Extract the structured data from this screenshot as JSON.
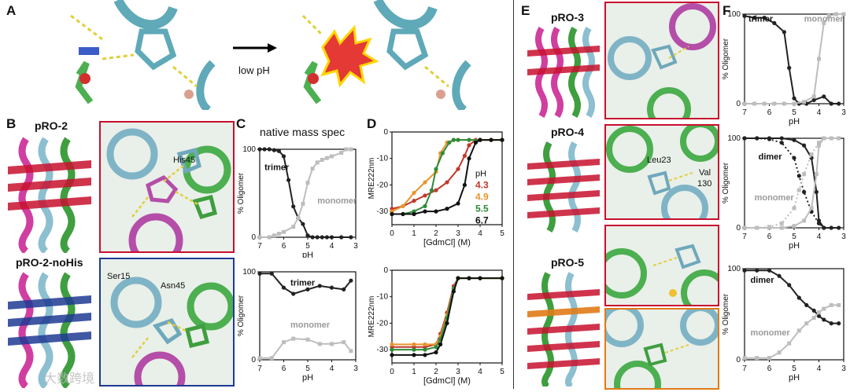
{
  "panels": {
    "A": {
      "letter": "A",
      "arrow_label": "low pH"
    },
    "B": {
      "letter": "B",
      "top_title": "pRO-2",
      "bottom_title": "pRO-2-noHis",
      "labels": {
        "his45": "His45",
        "ser15": "Ser15",
        "asn45": "Asn45"
      }
    },
    "C": {
      "letter": "C",
      "title": "native mass spec"
    },
    "D": {
      "letter": "D"
    },
    "E": {
      "letter": "E",
      "titles": [
        "pRO-3",
        "pRO-4",
        "pRO-5"
      ],
      "labels": {
        "leu23": "Leu23",
        "val130_a": "Val",
        "val130_b": "130"
      }
    },
    "F": {
      "letter": "F"
    }
  },
  "watermark": "大数跨境",
  "colors": {
    "red": "#c8102e",
    "blue": "#1f3a93",
    "orange": "#e07b18",
    "dark": "#222222",
    "grey": "#bdbdbd",
    "ph43": "#c0392b",
    "ph49": "#e8952c",
    "ph55": "#2e8b3a",
    "ph67": "#111111"
  },
  "chart_data": [
    {
      "id": "C1",
      "type": "line",
      "title": "native mass spec",
      "xlabel": "pH",
      "ylabel": "% Oligomer",
      "xlim": [
        7,
        3
      ],
      "ylim": [
        0,
        100
      ],
      "xticks": [
        7,
        6,
        5,
        4,
        3
      ],
      "yticks": [
        0,
        100
      ],
      "series": [
        {
          "name": "trimer",
          "color": "#222222",
          "x": [
            7,
            6.8,
            6.6,
            6.4,
            6.2,
            6.0,
            5.8,
            5.6,
            5.4,
            5.2,
            5.0,
            4.8,
            4.6,
            4.4,
            4.2,
            4.0,
            3.6,
            3.2
          ],
          "y": [
            100,
            100,
            100,
            99,
            98,
            92,
            65,
            35,
            22,
            15,
            2,
            0,
            0,
            0,
            0,
            0,
            0,
            0
          ]
        },
        {
          "name": "monomer",
          "color": "#bdbdbd",
          "x": [
            7,
            6.6,
            6.4,
            6.2,
            6.0,
            5.6,
            5.4,
            5.2,
            5.0,
            4.8,
            4.6,
            4.4,
            4.2,
            4.0,
            3.6,
            3.4,
            3.2
          ],
          "y": [
            0,
            0,
            2,
            4,
            6,
            12,
            22,
            38,
            62,
            78,
            85,
            88,
            90,
            92,
            96,
            100,
            100
          ]
        }
      ]
    },
    {
      "id": "C2",
      "type": "line",
      "xlabel": "pH",
      "ylabel": "% Oligomer",
      "xlim": [
        7,
        3
      ],
      "ylim": [
        0,
        100
      ],
      "xticks": [
        7,
        6,
        5,
        4,
        3
      ],
      "yticks": [
        0,
        100
      ],
      "series": [
        {
          "name": "trimer",
          "color": "#222222",
          "x": [
            7,
            6.5,
            6.0,
            5.6,
            5.0,
            4.5,
            4.0,
            3.5,
            3.2
          ],
          "y": [
            98,
            98,
            82,
            75,
            80,
            84,
            82,
            80,
            90
          ]
        },
        {
          "name": "monomer",
          "color": "#bdbdbd",
          "x": [
            7,
            6.5,
            6.0,
            5.6,
            5.0,
            4.5,
            4.0,
            3.5,
            3.2
          ],
          "y": [
            2,
            2,
            20,
            24,
            23,
            18,
            18,
            20,
            10
          ]
        }
      ]
    },
    {
      "id": "D1",
      "type": "line",
      "xlabel": "[GdmCl] (M)",
      "ylabel": "MRE222nm",
      "xlim": [
        0,
        5
      ],
      "ylim": [
        -35,
        0
      ],
      "xticks": [
        0,
        1,
        2,
        3,
        4,
        5
      ],
      "yticks": [
        0,
        -10,
        -20,
        -30
      ],
      "legend_title": "pH",
      "series": [
        {
          "name": "4.3",
          "color": "#c0392b",
          "x": [
            0,
            0.5,
            1.0,
            1.5,
            2.0,
            2.5,
            3.0,
            3.3,
            3.5,
            3.8,
            4.0,
            4.5,
            5.0
          ],
          "y": [
            -29,
            -28,
            -26,
            -24,
            -22,
            -19,
            -14,
            -9,
            -5,
            -3,
            -3,
            -3,
            -3
          ]
        },
        {
          "name": "4.9",
          "color": "#e8952c",
          "x": [
            0,
            0.5,
            1.0,
            1.5,
            2.0,
            2.2,
            2.5,
            2.8,
            3.0,
            3.5,
            4.0,
            4.5,
            5.0
          ],
          "y": [
            -30,
            -28,
            -23,
            -19,
            -15,
            -8,
            -4,
            -3,
            -3,
            -3,
            -3,
            -3,
            -3
          ]
        },
        {
          "name": "5.5",
          "color": "#2e8b3a",
          "x": [
            0,
            0.5,
            1.0,
            1.5,
            1.8,
            2.0,
            2.3,
            2.6,
            2.8,
            3.0,
            3.5,
            4.0,
            5.0
          ],
          "y": [
            -31,
            -31,
            -30,
            -28,
            -22,
            -14,
            -8,
            -4,
            -3,
            -3,
            -3,
            -3,
            -3
          ]
        },
        {
          "name": "6.7",
          "color": "#111111",
          "x": [
            0,
            0.5,
            1.0,
            1.5,
            2.0,
            2.5,
            3.0,
            3.3,
            3.5,
            3.8,
            4.0,
            4.5,
            5.0
          ],
          "y": [
            -31,
            -31,
            -31,
            -30,
            -30,
            -29,
            -27,
            -20,
            -10,
            -4,
            -3,
            -3,
            -3
          ]
        }
      ]
    },
    {
      "id": "D2",
      "type": "line",
      "xlabel": "[GdmCl] (M)",
      "ylabel": "MRE222nm",
      "xlim": [
        0,
        5
      ],
      "ylim": [
        -35,
        0
      ],
      "xticks": [
        0,
        1,
        2,
        3,
        4,
        5
      ],
      "yticks": [
        0,
        -10,
        -20,
        -30
      ],
      "series": [
        {
          "name": "4.3",
          "color": "#c0392b",
          "x": [
            0,
            1.0,
            1.5,
            2.0,
            2.2,
            2.5,
            2.8,
            3.0,
            3.5,
            4.0,
            5.0
          ],
          "y": [
            -29,
            -29,
            -29,
            -28,
            -24,
            -16,
            -6,
            -3,
            -3,
            -3,
            -3
          ]
        },
        {
          "name": "4.9",
          "color": "#e8952c",
          "x": [
            0,
            1.0,
            1.5,
            2.0,
            2.2,
            2.5,
            2.8,
            3.0,
            3.5,
            4.0,
            5.0
          ],
          "y": [
            -28,
            -28,
            -28,
            -28,
            -25,
            -17,
            -7,
            -3,
            -3,
            -3,
            -3
          ]
        },
        {
          "name": "5.5",
          "color": "#2e8b3a",
          "x": [
            0,
            1.0,
            1.5,
            2.0,
            2.2,
            2.5,
            2.8,
            3.0,
            3.5,
            4.0,
            5.0
          ],
          "y": [
            -30,
            -30,
            -30,
            -29,
            -26,
            -18,
            -7,
            -3,
            -3,
            -3,
            -3
          ]
        },
        {
          "name": "6.7",
          "color": "#111111",
          "x": [
            0,
            1.0,
            1.5,
            2.0,
            2.2,
            2.5,
            2.8,
            3.0,
            3.5,
            4.0,
            5.0
          ],
          "y": [
            -32,
            -32,
            -32,
            -31,
            -28,
            -20,
            -8,
            -3,
            -3,
            -3,
            -3
          ]
        }
      ]
    },
    {
      "id": "F1",
      "type": "line",
      "xlabel": "pH",
      "ylabel": "% Oligomer",
      "xlim": [
        7,
        3
      ],
      "ylim": [
        0,
        100
      ],
      "xticks": [
        7,
        6,
        5,
        4,
        3
      ],
      "yticks": [
        0,
        100
      ],
      "series": [
        {
          "name": "trimer",
          "color": "#222222",
          "x": [
            7,
            6.6,
            6.2,
            5.8,
            5.4,
            5.2,
            5.0,
            4.8,
            4.5,
            4.2,
            3.8,
            3.5,
            3.2
          ],
          "y": [
            98,
            96,
            96,
            90,
            80,
            40,
            6,
            0,
            0,
            4,
            8,
            0,
            0
          ]
        },
        {
          "name": "monomer",
          "color": "#bdbdbd",
          "x": [
            7,
            6.6,
            6.2,
            5.8,
            5.4,
            5.0,
            4.6,
            4.2,
            4.0,
            3.8,
            3.6,
            3.3,
            3.0
          ],
          "y": [
            0,
            0,
            0,
            0,
            0,
            0,
            2,
            8,
            50,
            90,
            98,
            100,
            100
          ]
        }
      ]
    },
    {
      "id": "F2",
      "type": "line",
      "xlabel": "pH",
      "ylabel": "% Oligomer",
      "xlim": [
        7,
        3
      ],
      "ylim": [
        0,
        100
      ],
      "xticks": [
        7,
        6,
        5,
        4,
        3
      ],
      "yticks": [
        0,
        100
      ],
      "series": [
        {
          "name": "dimer",
          "color": "#222222",
          "x": [
            7,
            6.5,
            6.0,
            5.5,
            5.0,
            4.6,
            4.3,
            4.1,
            4.0,
            3.8,
            3.5,
            3.2
          ],
          "y": [
            100,
            100,
            100,
            100,
            98,
            92,
            78,
            40,
            8,
            0,
            0,
            0
          ]
        },
        {
          "name": "dimer (dotted)",
          "color": "#222222",
          "dash": true,
          "x": [
            7,
            6.5,
            6.0,
            5.5,
            5.0,
            4.8,
            4.6,
            4.3,
            4.0,
            3.8
          ],
          "y": [
            100,
            100,
            99,
            95,
            78,
            58,
            40,
            18,
            5,
            0
          ]
        },
        {
          "name": "monomer",
          "color": "#bdbdbd",
          "x": [
            7,
            6.5,
            6.0,
            5.5,
            5.0,
            4.6,
            4.3,
            4.1,
            4.0,
            3.8,
            3.5,
            3.2
          ],
          "y": [
            0,
            0,
            0,
            0,
            2,
            8,
            22,
            60,
            92,
            100,
            100,
            100
          ]
        },
        {
          "name": "monomer (dotted)",
          "color": "#bdbdbd",
          "dash": true,
          "x": [
            7,
            6.5,
            6.0,
            5.5,
            5.0,
            4.8,
            4.6,
            4.3,
            4.0,
            3.8
          ],
          "y": [
            0,
            0,
            1,
            5,
            22,
            42,
            60,
            82,
            95,
            100
          ]
        }
      ]
    },
    {
      "id": "F3",
      "type": "line",
      "xlabel": "pH",
      "ylabel": "% Oligomer",
      "xlim": [
        7,
        3
      ],
      "ylim": [
        0,
        100
      ],
      "xticks": [
        7,
        6,
        5,
        4,
        3
      ],
      "yticks": [
        0,
        100
      ],
      "series": [
        {
          "name": "dimer",
          "color": "#222222",
          "x": [
            7,
            6.5,
            6.0,
            5.6,
            5.2,
            4.8,
            4.5,
            4.2,
            4.0,
            3.8,
            3.5,
            3.2
          ],
          "y": [
            98,
            98,
            98,
            92,
            82,
            68,
            60,
            54,
            48,
            44,
            40,
            40
          ]
        },
        {
          "name": "monomer",
          "color": "#bdbdbd",
          "x": [
            7,
            6.5,
            6.0,
            5.6,
            5.2,
            4.8,
            4.5,
            4.2,
            4.0,
            3.8,
            3.5,
            3.2
          ],
          "y": [
            2,
            2,
            2,
            8,
            18,
            32,
            40,
            46,
            52,
            56,
            60,
            60
          ]
        }
      ]
    }
  ]
}
